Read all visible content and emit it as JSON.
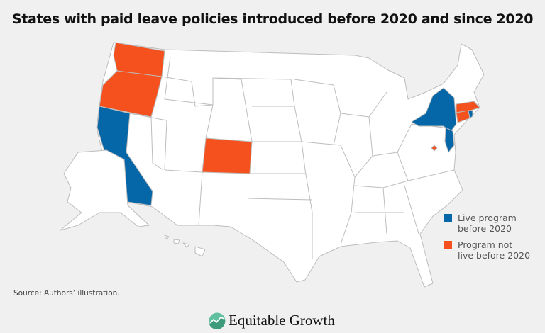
{
  "title": "States with paid leave policies introduced before 2020 and since 2020",
  "colors": {
    "live_before_2020": "#0566a8",
    "not_live_before_2020": "#f4511e",
    "other": "#ffffff",
    "border": "#bdbdbd"
  },
  "states": {
    "live_before_2020": [
      "California",
      "New York",
      "New Jersey",
      "Rhode Island"
    ],
    "not_live_before_2020": [
      "Washington",
      "Oregon",
      "Colorado",
      "Massachusetts",
      "Connecticut",
      "District of Columbia"
    ]
  },
  "legend": [
    {
      "line1": "Live program",
      "line2": "before 2020",
      "color": "#0566a8"
    },
    {
      "line1": "Program not",
      "line2": "live before 2020",
      "color": "#f4511e"
    }
  ],
  "source": "Source: Authors’ illustration.",
  "logo": {
    "text": "Equitable Growth",
    "icon": "rising-line-circle-icon"
  }
}
